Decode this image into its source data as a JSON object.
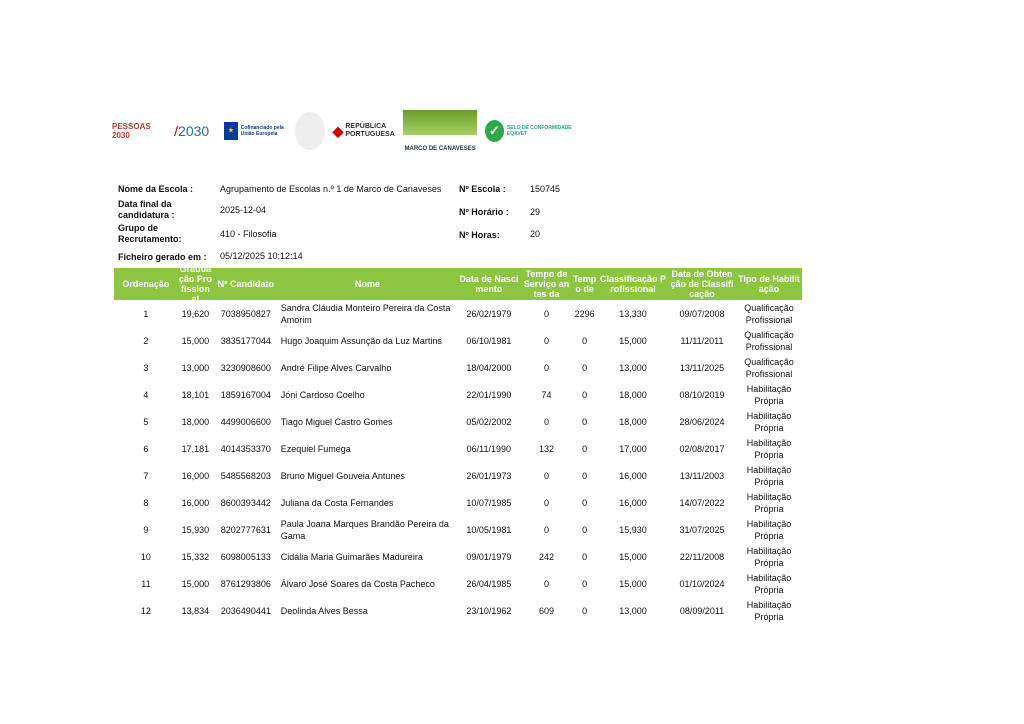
{
  "logos": [
    "PESSOAS 2030",
    "PORTUGAL 2030",
    "Cofinanciado pela União Europeia",
    "REPÚBLICA PORTUGUESA",
    "AGRUPAMENTO DE ESCOLAS N.º 1 DE MARCO DE CANAVESES",
    "SELO DE CONFORMIDADE EQAVET"
  ],
  "info": {
    "escola_label": "Nome da Escola :",
    "escola": "Agrupamento de Escolas n.º 1 de Marco de Canaveses",
    "data_label": "Data final da candidatura :",
    "data": "2025-12-04",
    "grupo_label": "Grupo de Recrutamento:",
    "grupo": "410 - Filosofia",
    "ficheiro_label": "Ficheiro gerado em :",
    "ficheiro": "05/12/2025 10:12:14",
    "num_escola_label": "Nº Escola :",
    "num_escola": "150745",
    "horario_label": "Nº Horário :",
    "horario": "29",
    "horas_label": "Nº Horas:",
    "horas": "20"
  },
  "columns": [
    "Ordenação",
    "Graduação Profissional",
    "Nº Candidato",
    "Nome",
    "Data de Nascimento",
    "Tempo de Serviço antes da",
    "Tempo de",
    "Classificação Profissional",
    "Data de Obtenção de Classificação",
    "Tipo de Habilitação"
  ],
  "rows": [
    [
      "1",
      "19,620",
      "7038950827",
      "Sandra Cláudia Monteiro Pereira da Costa Amorim",
      "26/02/1979",
      "0",
      "2296",
      "13,330",
      "09/07/2008",
      "Qualificação Profissional"
    ],
    [
      "2",
      "15,000",
      "3835177044",
      "Hugo Joaquim Assunção da Luz Martins",
      "06/10/1981",
      "0",
      "0",
      "15,000",
      "11/11/2011",
      "Qualificação Profissional"
    ],
    [
      "3",
      "13,000",
      "3230908600",
      "André Filipe Alves Carvalho",
      "18/04/2000",
      "0",
      "0",
      "13,000",
      "13/11/2025",
      "Qualificação Profissional"
    ],
    [
      "4",
      "18,101",
      "1859167004",
      "Jóni Cardoso Coelho",
      "22/01/1990",
      "74",
      "0",
      "18,000",
      "08/10/2019",
      "Habilitação Própria"
    ],
    [
      "5",
      "18,000",
      "4499006600",
      "Tiago Miguel Castro Gomes",
      "05/02/2002",
      "0",
      "0",
      "18,000",
      "28/06/2024",
      "Habilitação Própria"
    ],
    [
      "6",
      "17,181",
      "4014353370",
      "Ezequiel Fumega",
      "06/11/1990",
      "132",
      "0",
      "17,000",
      "02/08/2017",
      "Habilitação Própria"
    ],
    [
      "7",
      "16,000",
      "5485568203",
      "Bruno Miguel Gouveia Antunes",
      "26/01/1973",
      "0",
      "0",
      "16,000",
      "13/11/2003",
      "Habilitação Própria"
    ],
    [
      "8",
      "16,000",
      "8600393442",
      "Juliana da Costa Fernandes",
      "10/07/1985",
      "0",
      "0",
      "16,000",
      "14/07/2022",
      "Habilitação Própria"
    ],
    [
      "9",
      "15,930",
      "8202777631",
      "Paula Joana Marques Brandão Pereira da Gama",
      "10/05/1981",
      "0",
      "0",
      "15,930",
      "31/07/2025",
      "Habilitação Própria"
    ],
    [
      "10",
      "15,332",
      "6098005133",
      "Cidália Maria Guimarães Madureira",
      "09/01/1979",
      "242",
      "0",
      "15,000",
      "22/11/2008",
      "Habilitação Própria"
    ],
    [
      "11",
      "15,000",
      "8761293806",
      "Álvaro José Soares da Costa Pacheco",
      "26/04/1985",
      "0",
      "0",
      "15,000",
      "01/10/2024",
      "Habilitação Própria"
    ],
    [
      "12",
      "13,834",
      "2036490441",
      "Deolinda Alves Bessa",
      "23/10/1962",
      "609",
      "0",
      "13,000",
      "08/09/2011",
      "Habilitação Própria"
    ]
  ],
  "colors": {
    "header": "#8cc63f"
  }
}
